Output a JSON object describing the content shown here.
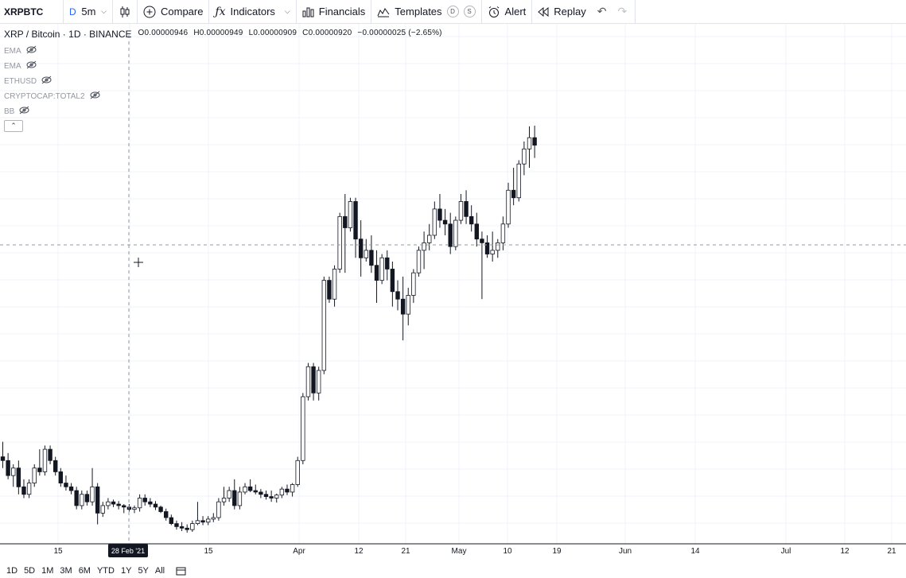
{
  "toolbar": {
    "symbol": "XRPBTC",
    "interval_prefix": "D",
    "interval": "5m",
    "compare": "Compare",
    "indicators": "Indicators",
    "financials": "Financials",
    "templates": "Templates",
    "badge_d": "D",
    "badge_s": "S",
    "alert": "Alert",
    "replay": "Replay"
  },
  "legend": {
    "series": "XRP / Bitcoin · 1D · BINANCE",
    "o_label": "O",
    "o_value": "0.00000946",
    "h_label": "H",
    "h_value": "0.00000949",
    "l_label": "L",
    "l_value": "0.00000909",
    "c_label": "C",
    "c_value": "0.00000920",
    "change": "−0.00000025 (−2.65%)"
  },
  "indicators": [
    {
      "name": "EMA"
    },
    {
      "name": "EMA"
    },
    {
      "name": "ETHUSD"
    },
    {
      "name": "CRYPTOCAP:TOTAL2"
    },
    {
      "name": "BB"
    }
  ],
  "time_axis": [
    "15",
    "15",
    "Apr",
    "12",
    "21",
    "May",
    "10",
    "19",
    "Jun",
    "14",
    "Jul",
    "12",
    "21"
  ],
  "cursor_date": "28 Feb '21",
  "ranges": [
    "1D",
    "5D",
    "1M",
    "3M",
    "6M",
    "YTD",
    "1Y",
    "5Y",
    "All"
  ],
  "colors": {
    "up": "#ffffff",
    "down": "#131722",
    "grid": "#f0f3fa",
    "accent": "#2962ff"
  },
  "chart_data": {
    "type": "candlestick",
    "symbol": "XRP / Bitcoin",
    "interval": "1D",
    "exchange": "BINANCE",
    "ylim": [
      4.2e-06,
      9.8e-06
    ],
    "candles": [
      [
        5.35,
        5.55,
        5.2,
        5.3
      ],
      [
        5.3,
        5.4,
        5.05,
        5.1
      ],
      [
        5.1,
        5.25,
        4.95,
        5.2
      ],
      [
        5.2,
        5.3,
        4.85,
        4.95
      ],
      [
        4.95,
        5.05,
        4.8,
        4.85
      ],
      [
        4.85,
        5.05,
        4.8,
        5.0
      ],
      [
        5.0,
        5.25,
        4.95,
        5.2
      ],
      [
        5.2,
        5.45,
        5.1,
        5.15
      ],
      [
        5.15,
        5.5,
        5.1,
        5.45
      ],
      [
        5.45,
        5.5,
        5.25,
        5.3
      ],
      [
        5.3,
        5.35,
        5.1,
        5.15
      ],
      [
        5.15,
        5.2,
        4.95,
        5.0
      ],
      [
        5.0,
        5.1,
        4.9,
        4.95
      ],
      [
        4.95,
        5.0,
        4.85,
        4.9
      ],
      [
        4.9,
        4.95,
        4.65,
        4.7
      ],
      [
        4.7,
        4.9,
        4.65,
        4.85
      ],
      [
        4.85,
        4.9,
        4.7,
        4.75
      ],
      [
        4.75,
        5.2,
        4.7,
        4.95
      ],
      [
        4.95,
        5.0,
        4.45,
        4.6
      ],
      [
        4.6,
        4.75,
        4.55,
        4.7
      ],
      [
        4.7,
        4.8,
        4.65,
        4.75
      ],
      [
        4.75,
        4.78,
        4.68,
        4.72
      ],
      [
        4.72,
        4.76,
        4.65,
        4.7
      ],
      [
        4.7,
        4.72,
        4.6,
        4.68
      ],
      [
        4.68,
        4.72,
        4.62,
        4.65
      ],
      [
        4.65,
        4.7,
        4.6,
        4.67
      ],
      [
        4.67,
        4.85,
        4.62,
        4.8
      ],
      [
        4.8,
        4.85,
        4.7,
        4.75
      ],
      [
        4.75,
        4.8,
        4.68,
        4.72
      ],
      [
        4.72,
        4.76,
        4.64,
        4.68
      ],
      [
        4.68,
        4.7,
        4.6,
        4.62
      ],
      [
        4.62,
        4.66,
        4.5,
        4.54
      ],
      [
        4.54,
        4.58,
        4.44,
        4.46
      ],
      [
        4.46,
        4.5,
        4.38,
        4.42
      ],
      [
        4.42,
        4.48,
        4.36,
        4.4
      ],
      [
        4.4,
        4.45,
        4.34,
        4.38
      ],
      [
        4.38,
        4.5,
        4.35,
        4.46
      ],
      [
        4.46,
        4.75,
        4.44,
        4.5
      ],
      [
        4.5,
        4.56,
        4.44,
        4.48
      ],
      [
        4.48,
        4.56,
        4.44,
        4.52
      ],
      [
        4.52,
        4.6,
        4.48,
        4.54
      ],
      [
        4.54,
        4.8,
        4.5,
        4.75
      ],
      [
        4.75,
        4.95,
        4.7,
        4.8
      ],
      [
        4.8,
        4.95,
        4.75,
        4.9
      ],
      [
        4.9,
        5.05,
        4.65,
        4.7
      ],
      [
        4.7,
        4.95,
        4.65,
        4.88
      ],
      [
        4.88,
        5.0,
        4.85,
        4.95
      ],
      [
        4.95,
        5.05,
        4.88,
        4.9
      ],
      [
        4.9,
        4.98,
        4.85,
        4.88
      ],
      [
        4.88,
        4.92,
        4.8,
        4.85
      ],
      [
        4.85,
        4.9,
        4.78,
        4.82
      ],
      [
        4.82,
        4.9,
        4.75,
        4.8
      ],
      [
        4.8,
        4.86,
        4.74,
        4.84
      ],
      [
        4.84,
        4.95,
        4.8,
        4.92
      ],
      [
        4.92,
        4.98,
        4.84,
        4.88
      ],
      [
        4.88,
        5.0,
        4.82,
        4.98
      ],
      [
        4.98,
        5.35,
        4.95,
        5.3
      ],
      [
        5.3,
        6.2,
        5.25,
        6.15
      ],
      [
        6.15,
        6.6,
        6.1,
        6.55
      ],
      [
        6.55,
        6.6,
        6.1,
        6.2
      ],
      [
        6.2,
        6.55,
        6.1,
        6.5
      ],
      [
        6.5,
        7.75,
        6.45,
        7.7
      ],
      [
        7.7,
        7.75,
        7.4,
        7.45
      ],
      [
        7.45,
        7.9,
        7.35,
        7.85
      ],
      [
        7.85,
        8.6,
        7.8,
        8.55
      ],
      [
        8.55,
        8.85,
        7.8,
        8.4
      ],
      [
        8.4,
        8.8,
        8.35,
        8.75
      ],
      [
        8.75,
        8.8,
        8.0,
        8.25
      ],
      [
        8.25,
        8.5,
        7.75,
        8.0
      ],
      [
        8.0,
        8.25,
        7.95,
        8.1
      ],
      [
        8.1,
        8.3,
        7.8,
        7.9
      ],
      [
        7.9,
        8.1,
        7.4,
        7.7
      ],
      [
        7.7,
        8.05,
        7.65,
        8.0
      ],
      [
        8.0,
        8.1,
        7.7,
        7.85
      ],
      [
        7.85,
        7.95,
        7.35,
        7.55
      ],
      [
        7.55,
        7.7,
        7.3,
        7.45
      ],
      [
        7.45,
        7.75,
        6.9,
        7.25
      ],
      [
        7.25,
        7.6,
        7.1,
        7.5
      ],
      [
        7.5,
        7.85,
        7.4,
        7.8
      ],
      [
        7.8,
        8.15,
        7.75,
        8.1
      ],
      [
        8.1,
        8.35,
        7.85,
        8.2
      ],
      [
        8.2,
        8.45,
        8.1,
        8.3
      ],
      [
        8.3,
        8.75,
        8.25,
        8.65
      ],
      [
        8.65,
        8.85,
        8.4,
        8.5
      ],
      [
        8.5,
        8.65,
        8.3,
        8.45
      ],
      [
        8.45,
        8.6,
        8.05,
        8.15
      ],
      [
        8.15,
        8.55,
        8.1,
        8.5
      ],
      [
        8.5,
        8.85,
        8.45,
        8.75
      ],
      [
        8.75,
        8.9,
        8.45,
        8.55
      ],
      [
        8.55,
        8.7,
        8.35,
        8.45
      ],
      [
        8.45,
        8.6,
        8.15,
        8.25
      ],
      [
        8.25,
        8.35,
        7.45,
        8.2
      ],
      [
        8.2,
        8.3,
        8.0,
        8.05
      ],
      [
        8.05,
        8.35,
        7.95,
        8.1
      ],
      [
        8.1,
        8.25,
        8.0,
        8.2
      ],
      [
        8.2,
        8.55,
        8.1,
        8.45
      ],
      [
        8.45,
        9.0,
        8.4,
        8.9
      ],
      [
        8.9,
        9.2,
        8.7,
        8.8
      ],
      [
        8.8,
        9.3,
        8.75,
        9.25
      ],
      [
        9.25,
        9.55,
        9.1,
        9.45
      ],
      [
        9.45,
        9.75,
        9.2,
        9.6
      ],
      [
        9.6,
        9.76,
        9.33,
        9.5
      ]
    ]
  }
}
